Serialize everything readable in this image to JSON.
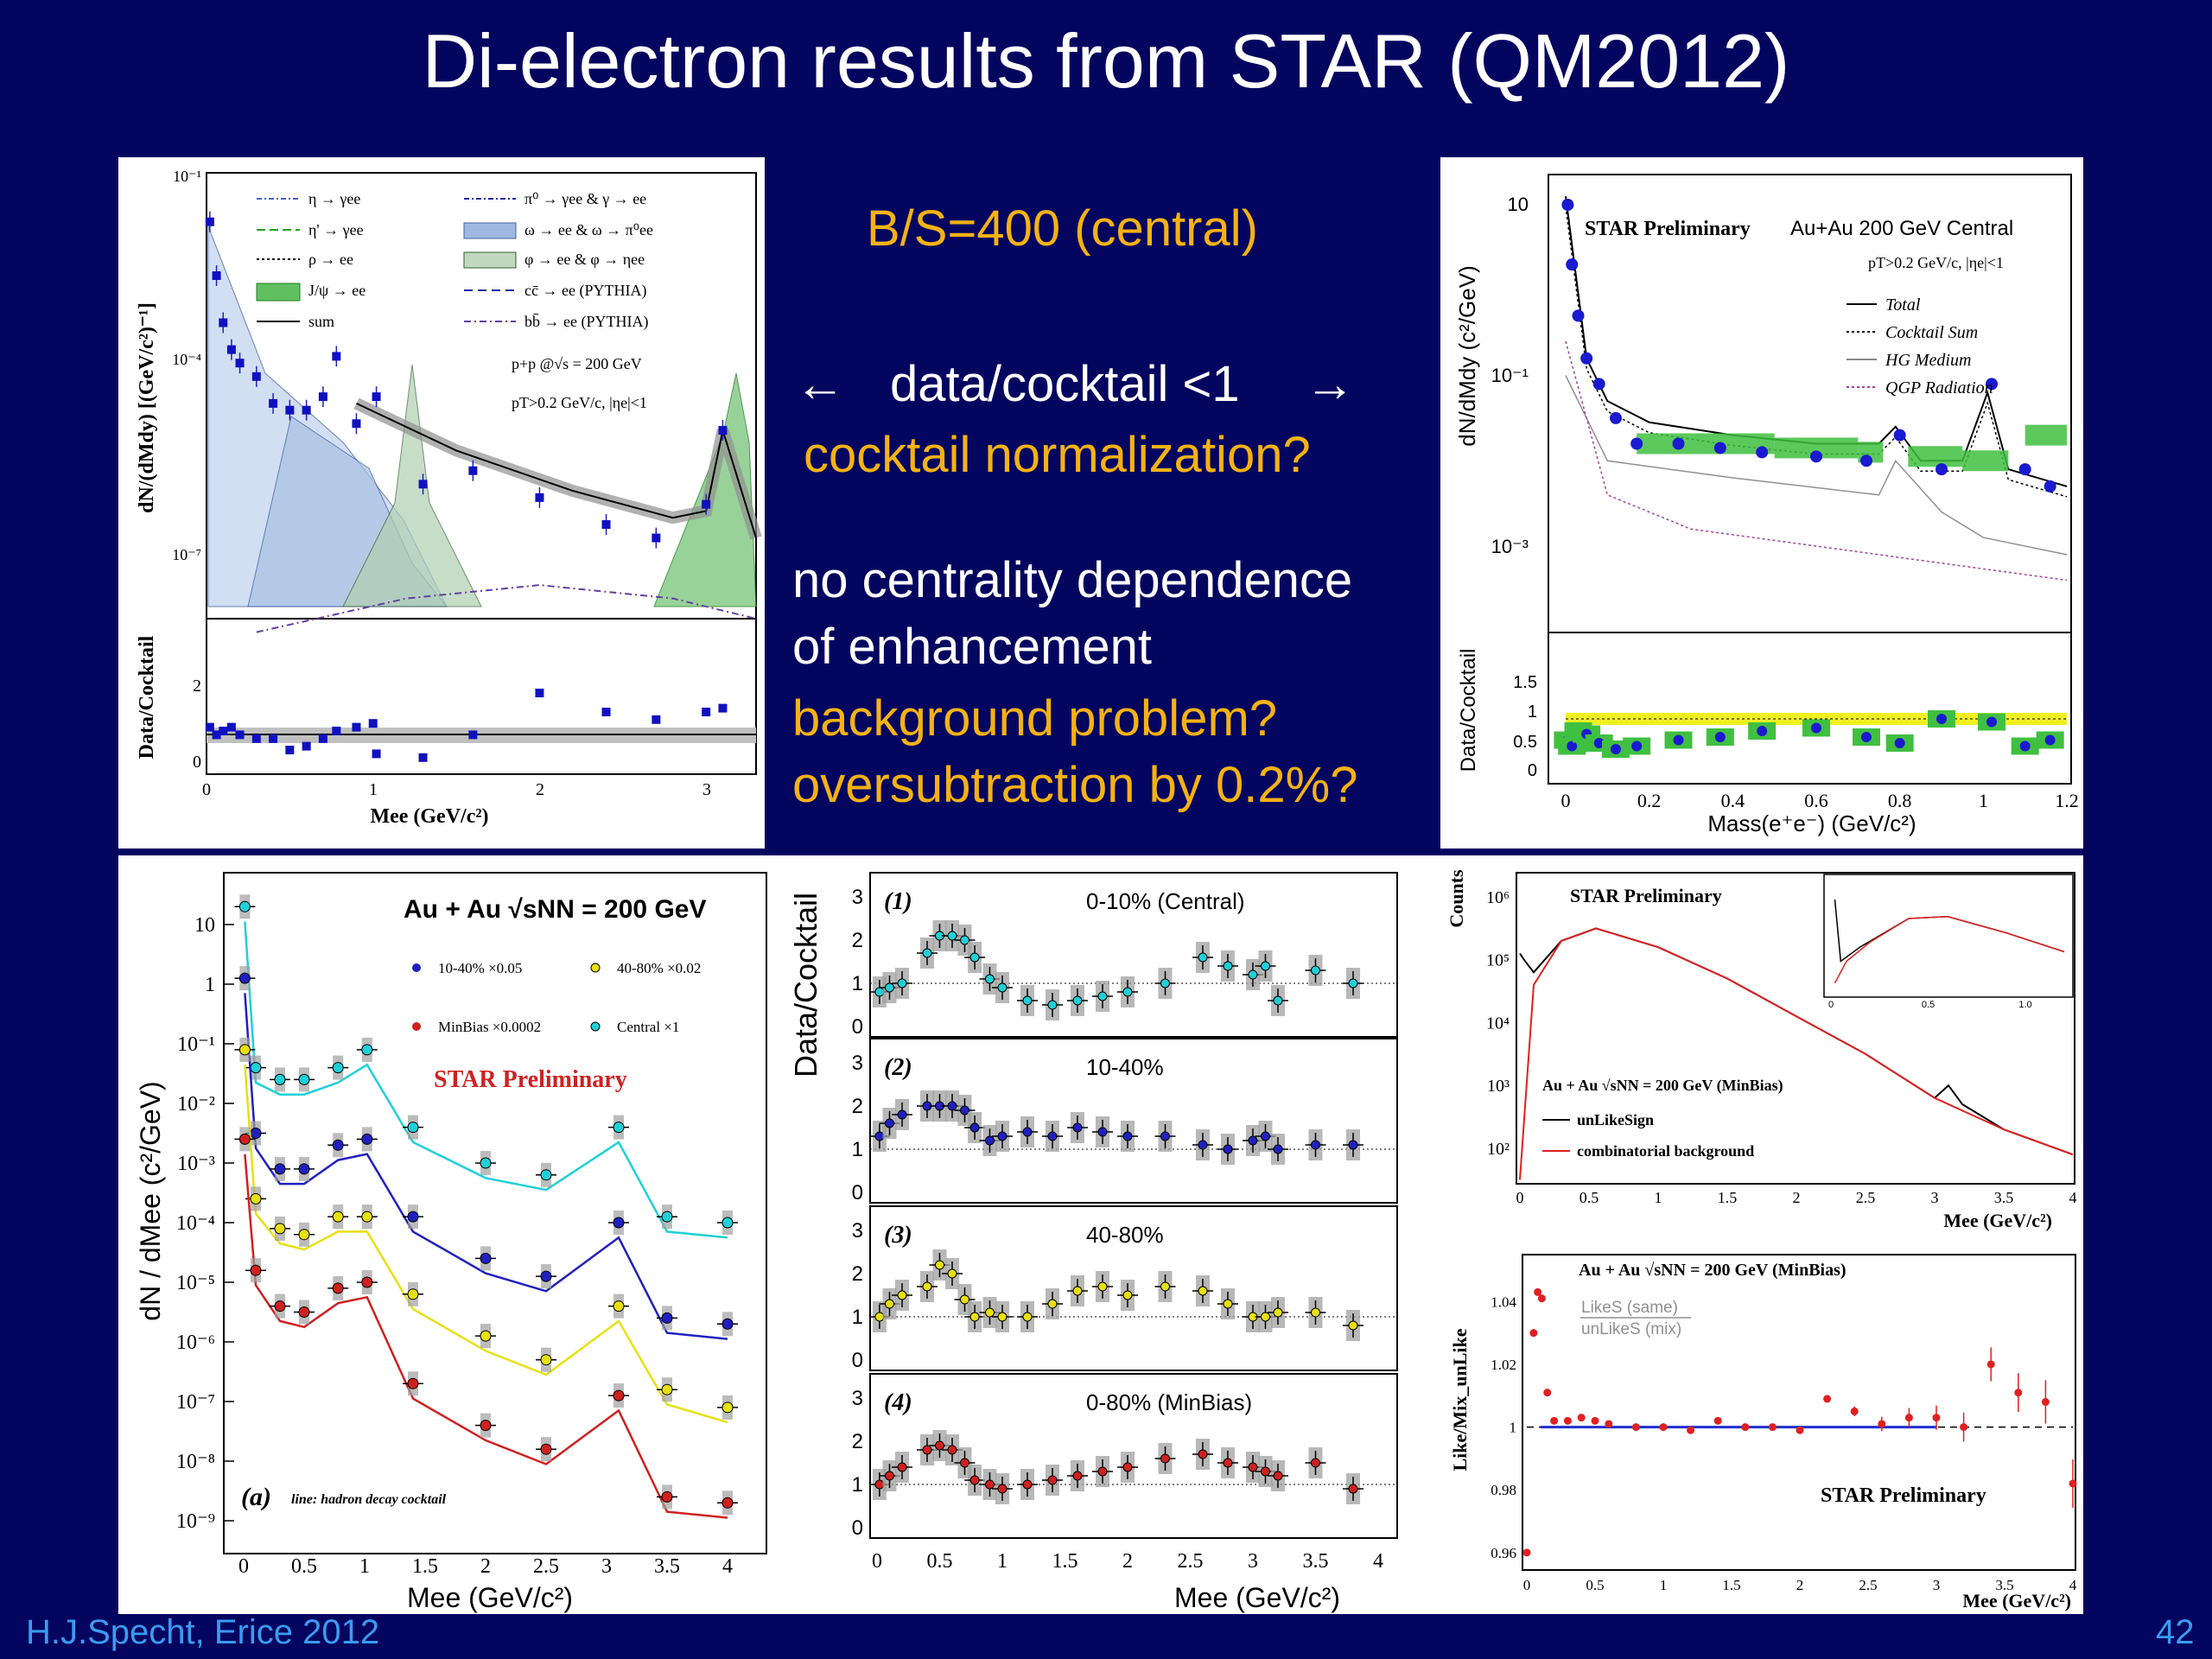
{
  "slide": {
    "title": "Di-electron results from STAR (QM2012)",
    "author": "H.J.Specht, Erice 2012",
    "page_number": "42",
    "colors": {
      "background": "#04055f",
      "orange_text": "#f5b212",
      "footer_text": "#3a9cf0"
    }
  },
  "notes": {
    "bs_ratio": "B/S=400 (central)",
    "arrow_left": "←",
    "ratio_line": "data/cocktail <1",
    "arrow_right": "→",
    "normalization": "cocktail normalization?",
    "centrality_line1": "no centrality dependence",
    "centrality_line2": "of enhancement",
    "background_problem": "background problem?",
    "oversubtraction": "oversubtraction by 0.2%?"
  },
  "chart_data": [
    {
      "id": "pp-cocktail",
      "type": "line",
      "ylabel_top": "dN/(dMdy) [(GeV/c²)⁻¹]",
      "ylabel_bottom": "Data/Cocktail",
      "xlabel": "Mee (GeV/c²)",
      "y_ticks": [
        "10⁻¹",
        "10⁻⁴",
        "10⁻⁷"
      ],
      "x_ticks": [
        "0",
        "1",
        "2",
        "3"
      ],
      "ratio_ticks": [
        "0",
        "2"
      ],
      "xlim": [
        0,
        3.3
      ],
      "system_label": "p+p @√s = 200 GeV",
      "cut_label": "pT>0.2 GeV/c, |ηe|<1",
      "legend": [
        "η → γee",
        "π⁰ → γee & γ → ee",
        "η' → γee",
        "ω → ee & ω → π⁰ee",
        "ρ → ee",
        "φ → ee & φ → ηee",
        "J/ψ → ee",
        "cc̄ → ee (PYTHIA)",
        "sum",
        "bb̄ → ee (PYTHIA)"
      ],
      "data_x": [
        0.02,
        0.06,
        0.1,
        0.15,
        0.2,
        0.3,
        0.4,
        0.5,
        0.6,
        0.7,
        0.78,
        0.9,
        1.02,
        1.3,
        1.6,
        2.0,
        2.4,
        2.7,
        3.0,
        3.1
      ],
      "data_log10y": [
        -1.6,
        -2.4,
        -3.1,
        -3.5,
        -3.7,
        -3.9,
        -4.3,
        -4.4,
        -4.4,
        -4.2,
        -3.6,
        -4.6,
        -4.2,
        -5.5,
        -5.3,
        -5.7,
        -6.1,
        -6.3,
        -5.8,
        -4.7
      ]
    },
    {
      "id": "auau-central",
      "type": "line",
      "ylabel_top": "dN/dMdy (c²/GeV)",
      "ylabel_bottom": "Data/Cocktail",
      "xlabel": "Mass(e⁺e⁻) (GeV/c²)",
      "y_ticks": [
        "10",
        "10⁻¹",
        "10⁻³"
      ],
      "x_ticks": [
        "0",
        "0.2",
        "0.4",
        "0.6",
        "0.8",
        "1",
        "1.2"
      ],
      "ratio_ticks": [
        "0",
        "0.5",
        "1",
        "1.5"
      ],
      "xlim": [
        0,
        1.2
      ],
      "preliminary_label": "STAR Preliminary",
      "system_label": "Au+Au 200 GeV Central",
      "cut_label": "pT>0.2 GeV/c, |ηe|<1",
      "legend": [
        "Total",
        "Cocktail Sum",
        "HG Medium",
        "QGP Radiation"
      ],
      "data_x": [
        0.005,
        0.015,
        0.03,
        0.05,
        0.08,
        0.12,
        0.17,
        0.27,
        0.37,
        0.47,
        0.6,
        0.72,
        0.8,
        0.9,
        1.02,
        1.1,
        1.16
      ],
      "data_log10y": [
        1.0,
        0.3,
        -0.3,
        -0.8,
        -1.1,
        -1.5,
        -1.8,
        -1.8,
        -1.85,
        -1.9,
        -1.95,
        -2.0,
        -1.7,
        -2.1,
        -1.1,
        -2.1,
        -2.3
      ],
      "ratio_y": [
        0.65,
        0.55,
        0.8,
        0.75,
        0.6,
        0.5,
        0.55,
        0.65,
        0.7,
        0.8,
        0.85,
        0.7,
        0.6,
        1.0,
        0.95,
        0.55,
        0.65
      ]
    },
    {
      "id": "auau-centralities",
      "type": "line",
      "ylabel": "dN / dMee (c²/GeV)",
      "xlabel": "Mee (GeV/c²)",
      "title": "Au + Au √sNN = 200 GeV",
      "preliminary_label": "STAR Preliminary",
      "panel_label": "(a)",
      "panel_note": "line: hadron decay cocktail",
      "y_ticks": [
        "10",
        "1",
        "10⁻¹",
        "10⁻²",
        "10⁻³",
        "10⁻⁴",
        "10⁻⁵",
        "10⁻⁶",
        "10⁻⁷",
        "10⁻⁸",
        "10⁻⁹"
      ],
      "x_ticks": [
        "0",
        "0.5",
        "1",
        "1.5",
        "2",
        "2.5",
        "3",
        "3.5",
        "4"
      ],
      "xlim": [
        0,
        4.1
      ],
      "series": [
        {
          "name": "Central ×1",
          "color": "#20d0d8",
          "x": [
            0.01,
            0.1,
            0.3,
            0.5,
            0.78,
            1.02,
            1.4,
            2.0,
            2.5,
            3.1,
            3.5,
            4.0
          ],
          "log10y": [
            1.3,
            -1.4,
            -1.6,
            -1.6,
            -1.4,
            -1.1,
            -2.4,
            -3.0,
            -3.2,
            -2.4,
            -3.9,
            -4.0
          ]
        },
        {
          "name": "10-40% ×0.05",
          "color": "#2020c0",
          "x": [
            0.01,
            0.1,
            0.3,
            0.5,
            0.78,
            1.02,
            1.4,
            2.0,
            2.5,
            3.1,
            3.5,
            4.0
          ],
          "log10y": [
            0.1,
            -2.5,
            -3.1,
            -3.1,
            -2.7,
            -2.6,
            -3.9,
            -4.6,
            -4.9,
            -4.0,
            -5.6,
            -5.7
          ]
        },
        {
          "name": "40-80% ×0.02",
          "color": "#e8e010",
          "x": [
            0.01,
            0.1,
            0.3,
            0.5,
            0.78,
            1.02,
            1.4,
            2.0,
            2.5,
            3.1,
            3.5,
            4.0
          ],
          "log10y": [
            -1.1,
            -3.6,
            -4.1,
            -4.2,
            -3.9,
            -3.9,
            -5.2,
            -5.9,
            -6.3,
            -5.4,
            -6.8,
            -7.1
          ]
        },
        {
          "name": "MinBias ×0.0002",
          "color": "#d02020",
          "x": [
            0.01,
            0.1,
            0.3,
            0.5,
            0.78,
            1.02,
            1.4,
            2.0,
            2.5,
            3.1,
            3.5,
            4.0
          ],
          "log10y": [
            -2.6,
            -4.8,
            -5.4,
            -5.5,
            -5.1,
            -5.0,
            -6.7,
            -7.4,
            -7.8,
            -6.9,
            -8.6,
            -8.7
          ]
        }
      ]
    },
    {
      "id": "data-over-cocktail",
      "type": "scatter",
      "ylabel": "Data/Cocktail",
      "xlabel": "Mee (GeV/c²)",
      "y_ticks": [
        "0",
        "1",
        "2",
        "3"
      ],
      "x_ticks": [
        "0",
        "0.5",
        "1",
        "1.5",
        "2",
        "2.5",
        "3",
        "3.5",
        "4"
      ],
      "xlim": [
        0,
        4.1
      ],
      "ylim": [
        0,
        3.4
      ],
      "x": [
        0.02,
        0.1,
        0.2,
        0.4,
        0.5,
        0.6,
        0.7,
        0.78,
        0.9,
        1.0,
        1.2,
        1.4,
        1.6,
        1.8,
        2.0,
        2.3,
        2.6,
        2.8,
        3.0,
        3.1,
        3.2,
        3.5,
        3.8
      ],
      "subpanels": [
        {
          "label": "(1)",
          "name": "0-10% (Central)",
          "color": "#20d0d8",
          "y": [
            0.8,
            0.9,
            1.0,
            1.7,
            2.1,
            2.1,
            2.0,
            1.6,
            1.1,
            0.9,
            0.6,
            0.5,
            0.6,
            0.7,
            0.8,
            1.0,
            1.6,
            1.4,
            1.2,
            1.4,
            0.6,
            1.3,
            1.0
          ]
        },
        {
          "label": "(2)",
          "name": "10-40%",
          "color": "#2020c0",
          "y": [
            1.3,
            1.6,
            1.8,
            2.0,
            2.0,
            2.0,
            1.9,
            1.5,
            1.2,
            1.3,
            1.4,
            1.3,
            1.5,
            1.4,
            1.3,
            1.3,
            1.1,
            1.0,
            1.2,
            1.3,
            1.0,
            1.1,
            1.1
          ]
        },
        {
          "label": "(3)",
          "name": "40-80%",
          "color": "#e8e010",
          "y": [
            1.0,
            1.3,
            1.5,
            1.7,
            2.2,
            2.0,
            1.4,
            1.0,
            1.1,
            1.0,
            1.0,
            1.3,
            1.6,
            1.7,
            1.5,
            1.7,
            1.6,
            1.3,
            1.0,
            1.0,
            1.1,
            1.1,
            0.8
          ]
        },
        {
          "label": "(4)",
          "name": "0-80% (MinBias)",
          "color": "#d02020",
          "y": [
            1.0,
            1.2,
            1.4,
            1.8,
            1.9,
            1.8,
            1.5,
            1.1,
            1.0,
            0.9,
            1.0,
            1.1,
            1.2,
            1.3,
            1.4,
            1.6,
            1.7,
            1.5,
            1.4,
            1.3,
            1.2,
            1.5,
            0.9
          ]
        }
      ]
    },
    {
      "id": "background-counts",
      "type": "line",
      "ylabel": "Counts",
      "xlabel": "Mee (GeV/c²)",
      "preliminary_label": "STAR Preliminary",
      "system_label": "Au + Au √sNN = 200 GeV (MinBias)",
      "y_ticks": [
        "10⁶",
        "10⁵",
        "10⁴",
        "10³",
        "10²"
      ],
      "x_ticks": [
        "0",
        "0.5",
        "1",
        "1.5",
        "2",
        "2.5",
        "3",
        "3.5",
        "4"
      ],
      "inset_ticks": [
        "0",
        "0.5",
        "1.0"
      ],
      "xlim": [
        0,
        4
      ],
      "series": [
        {
          "name": "unLikeSign",
          "color": "#000000",
          "x": [
            0.0,
            0.03,
            0.1,
            0.3,
            0.55,
            1.0,
            1.5,
            2.0,
            2.5,
            3.0,
            3.1,
            3.2,
            3.5,
            4.0
          ],
          "log10y": [
            5.1,
            5.0,
            4.8,
            5.3,
            5.5,
            5.2,
            4.7,
            4.1,
            3.5,
            2.8,
            3.0,
            2.7,
            2.3,
            1.9
          ]
        },
        {
          "name": "combinatorial background",
          "color": "#e02020",
          "x": [
            0.0,
            0.1,
            0.3,
            0.55,
            1.0,
            1.5,
            2.0,
            2.5,
            3.0,
            3.5,
            4.0
          ],
          "log10y": [
            1.5,
            4.6,
            5.3,
            5.5,
            5.2,
            4.7,
            4.1,
            3.5,
            2.8,
            2.3,
            1.9
          ]
        }
      ]
    },
    {
      "id": "like-mix-ratio",
      "type": "scatter",
      "ylabel": "Like/Mix_unLike",
      "xlabel": "Mee (GeV/c²)",
      "preliminary_label": "STAR Preliminary",
      "system_label": "Au + Au √sNN = 200 GeV (MinBias)",
      "ratio_num": "LikeS (same)",
      "ratio_den": "unLikeS (mix)",
      "y_ticks": [
        "1.04",
        "1.02",
        "1",
        "0.98",
        "0.96"
      ],
      "x_ticks": [
        "0",
        "0.5",
        "1",
        "1.5",
        "2",
        "2.5",
        "3",
        "3.5",
        "4"
      ],
      "xlim": [
        0,
        4
      ],
      "ylim": [
        0.955,
        1.05
      ],
      "x": [
        0.0,
        0.05,
        0.08,
        0.11,
        0.15,
        0.2,
        0.3,
        0.4,
        0.5,
        0.6,
        0.8,
        1.0,
        1.2,
        1.4,
        1.6,
        1.8,
        2.0,
        2.2,
        2.4,
        2.6,
        2.8,
        3.0,
        3.2,
        3.4,
        3.6,
        3.8,
        4.0
      ],
      "y": [
        0.96,
        1.03,
        1.043,
        1.041,
        1.011,
        1.002,
        1.002,
        1.003,
        1.002,
        1.001,
        1.0,
        1.0,
        0.999,
        1.002,
        1.0,
        1.0,
        0.999,
        1.009,
        1.005,
        1.001,
        1.003,
        1.003,
        1.0,
        1.02,
        1.011,
        1.008,
        0.982
      ]
    }
  ]
}
